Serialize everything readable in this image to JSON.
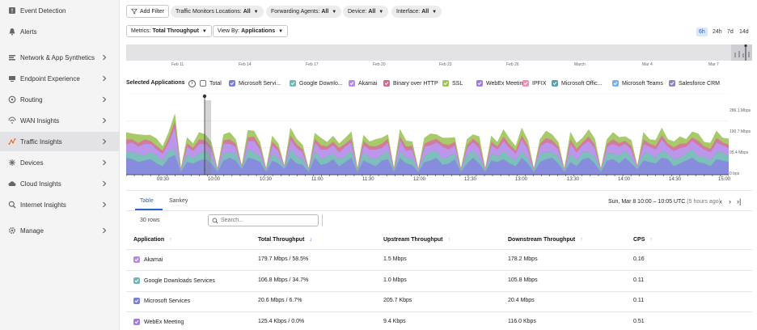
{
  "sidebar": {
    "items": [
      {
        "label": "Event Detection",
        "icon": "event-icon",
        "chevron": false
      },
      {
        "label": "Alerts",
        "icon": "bell-icon",
        "chevron": false
      },
      {
        "label": "Network & App Synthetics",
        "icon": "network-icon",
        "chevron": true
      },
      {
        "label": "Endpoint Experience",
        "icon": "endpoint-icon",
        "chevron": true
      },
      {
        "label": "Routing",
        "icon": "routing-icon",
        "chevron": true
      },
      {
        "label": "WAN Insights",
        "icon": "wan-icon",
        "chevron": true
      },
      {
        "label": "Traffic Insights",
        "icon": "traffic-icon",
        "chevron": true,
        "active": true
      },
      {
        "label": "Devices",
        "icon": "devices-icon",
        "chevron": true
      },
      {
        "label": "Cloud Insights",
        "icon": "cloud-icon",
        "chevron": true
      },
      {
        "label": "Internet Insights",
        "icon": "internet-icon",
        "chevron": true
      },
      {
        "label": "Manage",
        "icon": "gear-icon",
        "chevron": true
      }
    ]
  },
  "filters": {
    "add_filter": "Add Filter",
    "chips": [
      {
        "label": "Traffic Monitors Locations:",
        "value": "All"
      },
      {
        "label": "Forwarding Agents:",
        "value": "All"
      },
      {
        "label": "Device:",
        "value": "All"
      },
      {
        "label": "Interface:",
        "value": "All"
      }
    ]
  },
  "controls": {
    "metrics_label": "Metrics:",
    "metrics_value": "Total Throughput",
    "viewby_label": "View By:",
    "viewby_value": "Applications",
    "time_ranges": [
      "6h",
      "24h",
      "7d",
      "14d"
    ],
    "active_range": "6h"
  },
  "overview": {
    "ticks": [
      "Feb 11",
      "Feb 14",
      "Feb 17",
      "Feb 20",
      "Feb 23",
      "Feb 26",
      "March",
      "Mar 4",
      "Mar 7"
    ]
  },
  "legend": {
    "title": "Selected Applications",
    "info": "i",
    "items": [
      {
        "label": "Total",
        "color": "",
        "checked": false
      },
      {
        "label": "Microsoft Servi...",
        "color": "#7b7fd9",
        "checked": true
      },
      {
        "label": "Google Downlo...",
        "color": "#6fb8b4",
        "checked": true
      },
      {
        "label": "Akamai",
        "color": "#b58be8",
        "checked": true
      },
      {
        "label": "Binary over HTTP",
        "color": "#d16b8f",
        "checked": true
      },
      {
        "label": "SSL",
        "color": "#9fc45a",
        "checked": true
      },
      {
        "label": "WebEx Meeting",
        "color": "#a27ce0",
        "checked": true
      },
      {
        "label": "IPFIX",
        "color": "#f08fb8",
        "checked": true
      },
      {
        "label": "Microsoft Offic...",
        "color": "#5aa0b0",
        "checked": true
      },
      {
        "label": "Microsoft Teams",
        "color": "#7ab0f0",
        "checked": true
      },
      {
        "label": "Salesforce CRM",
        "color": "#8a8ac0",
        "checked": true
      }
    ]
  },
  "chart_data": {
    "type": "area",
    "x_ticks": [
      "09:30",
      "10:00",
      "10:30",
      "11:00",
      "11:30",
      "12:00",
      "12:30",
      "13:00",
      "13:30",
      "14:00",
      "14:30",
      "15:00"
    ],
    "y_ticks": [
      "286.1 Mbps",
      "190.7 Mbps",
      "95.4 Mbps",
      "0 bps"
    ],
    "ylim": [
      0,
      286.1
    ],
    "series": [
      {
        "name": "Microsoft Services",
        "color": "#7b7fd9",
        "values": [
          60,
          55,
          45,
          50,
          55,
          40,
          30,
          60,
          70,
          10,
          45,
          40,
          50,
          55,
          40,
          10,
          50,
          60,
          50,
          20,
          60,
          55,
          45,
          10,
          50,
          40,
          20,
          60,
          40,
          35,
          10,
          60,
          35,
          40,
          55,
          30,
          45,
          60,
          10,
          50,
          40,
          30,
          50,
          55,
          10,
          60,
          40,
          35,
          10,
          45,
          50,
          60,
          35,
          40,
          55,
          10,
          40,
          60,
          40,
          10,
          50,
          45,
          55,
          40,
          30,
          60,
          40,
          10,
          45,
          55,
          60,
          40,
          10,
          45,
          30,
          55,
          60,
          40,
          10,
          50,
          55,
          40,
          60,
          40,
          20,
          50,
          45,
          40,
          60,
          55,
          30,
          40,
          50,
          60,
          45,
          40,
          30,
          55,
          50,
          45
        ]
      },
      {
        "name": "Google Downloads Services",
        "color": "#6fb8b4",
        "values": [
          20,
          25,
          30,
          20,
          25,
          30,
          20,
          25,
          20,
          5,
          25,
          20,
          25,
          30,
          20,
          5,
          25,
          20,
          25,
          5,
          30,
          25,
          20,
          5,
          25,
          20,
          5,
          30,
          25,
          20,
          5,
          25,
          20,
          25,
          20,
          25,
          20,
          25,
          5,
          30,
          20,
          25,
          20,
          30,
          5,
          25,
          20,
          25,
          5,
          20,
          30,
          25,
          20,
          25,
          20,
          5,
          30,
          25,
          20,
          5,
          25,
          20,
          30,
          25,
          20,
          25,
          20,
          5,
          30,
          25,
          20,
          25,
          5,
          30,
          20,
          25,
          20,
          25,
          5,
          25,
          20,
          30,
          25,
          20,
          5,
          25,
          30,
          20,
          25,
          20,
          25,
          20,
          25,
          30,
          20,
          25,
          20,
          25,
          30,
          20
        ]
      },
      {
        "name": "Akamai",
        "color": "#b58be8",
        "values": [
          30,
          35,
          25,
          40,
          30,
          20,
          25,
          30,
          80,
          5,
          30,
          25,
          35,
          25,
          30,
          5,
          35,
          30,
          25,
          5,
          30,
          40,
          25,
          5,
          30,
          25,
          5,
          35,
          30,
          25,
          5,
          30,
          35,
          25,
          30,
          25,
          35,
          30,
          5,
          25,
          30,
          35,
          25,
          30,
          5,
          40,
          25,
          30,
          5,
          35,
          25,
          30,
          45,
          25,
          30,
          5,
          25,
          30,
          35,
          5,
          30,
          25,
          35,
          30,
          25,
          40,
          30,
          5,
          25,
          35,
          30,
          25,
          5,
          35,
          30,
          25,
          40,
          30,
          5,
          25,
          35,
          30,
          25,
          30,
          5,
          35,
          25,
          30,
          40,
          25,
          30,
          35,
          25,
          30,
          40,
          25,
          30,
          35,
          25,
          30
        ]
      },
      {
        "name": "Binary over HTTP",
        "color": "#d16b8f",
        "values": [
          15,
          10,
          12,
          15,
          10,
          12,
          10,
          15,
          20,
          0,
          12,
          10,
          15,
          12,
          10,
          0,
          12,
          15,
          10,
          0,
          12,
          15,
          10,
          0,
          12,
          10,
          0,
          15,
          12,
          10,
          0,
          12,
          15,
          10,
          12,
          15,
          10,
          12,
          0,
          15,
          12,
          10,
          15,
          12,
          0,
          10,
          15,
          12,
          0,
          10,
          15,
          12,
          10,
          15,
          12,
          0,
          10,
          12,
          15,
          0,
          12,
          10,
          15,
          12,
          10,
          15,
          12,
          0,
          10,
          15,
          12,
          10,
          0,
          15,
          12,
          10,
          15,
          12,
          0,
          10,
          15,
          12,
          10,
          12,
          0,
          15,
          10,
          12,
          15,
          10,
          12,
          15,
          10,
          12,
          15,
          10,
          12,
          15,
          10,
          12
        ]
      },
      {
        "name": "SSL",
        "color": "#9fc45a",
        "values": [
          25,
          20,
          30,
          15,
          20,
          25,
          15,
          20,
          25,
          0,
          20,
          15,
          25,
          20,
          15,
          0,
          20,
          25,
          15,
          0,
          25,
          20,
          15,
          0,
          20,
          15,
          0,
          25,
          20,
          15,
          0,
          20,
          25,
          15,
          20,
          15,
          20,
          25,
          0,
          20,
          15,
          25,
          20,
          15,
          0,
          25,
          20,
          15,
          0,
          20,
          25,
          15,
          20,
          25,
          15,
          0,
          20,
          15,
          25,
          0,
          20,
          15,
          25,
          20,
          15,
          25,
          20,
          0,
          15,
          25,
          20,
          15,
          0,
          25,
          20,
          15,
          25,
          20,
          0,
          15,
          25,
          20,
          15,
          20,
          0,
          25,
          15,
          20,
          25,
          15,
          20,
          25,
          15,
          20,
          25,
          15,
          20,
          25,
          15,
          20
        ]
      }
    ]
  },
  "table": {
    "tabs": [
      "Table",
      "Sankey"
    ],
    "active_tab": "Table",
    "timestamp": "Sun, Mar 8 10:00 – 10:05 UTC",
    "timestamp_ago": "(5 hours ago)",
    "rows_count": "30 rows",
    "search_placeholder": "Search...",
    "columns": [
      "Application",
      "Total Throughput",
      "Upstream Throughput",
      "Downstream Throughput",
      "CPS"
    ],
    "rows": [
      {
        "app": "Akamai",
        "color": "#b58be8",
        "total": "179.7 Mbps / 58.5%",
        "up": "1.5 Mbps",
        "down": "178.2 Mbps",
        "cps": "0.16"
      },
      {
        "app": "Google Downloads Services",
        "color": "#6fb8b4",
        "total": "106.8 Mbps / 34.7%",
        "up": "1.0 Mbps",
        "down": "105.8 Mbps",
        "cps": "0.11"
      },
      {
        "app": "Microsoft Services",
        "color": "#7b7fd9",
        "total": "20.6 Mbps / 6.7%",
        "up": "205.7 Kbps",
        "down": "20.4 Mbps",
        "cps": "0.11"
      },
      {
        "app": "WebEx Meeting",
        "color": "#a27ce0",
        "total": "125.4 Kbps / 0.0%",
        "up": "9.4 Kbps",
        "down": "116.0 Kbps",
        "cps": "0.51"
      }
    ]
  }
}
